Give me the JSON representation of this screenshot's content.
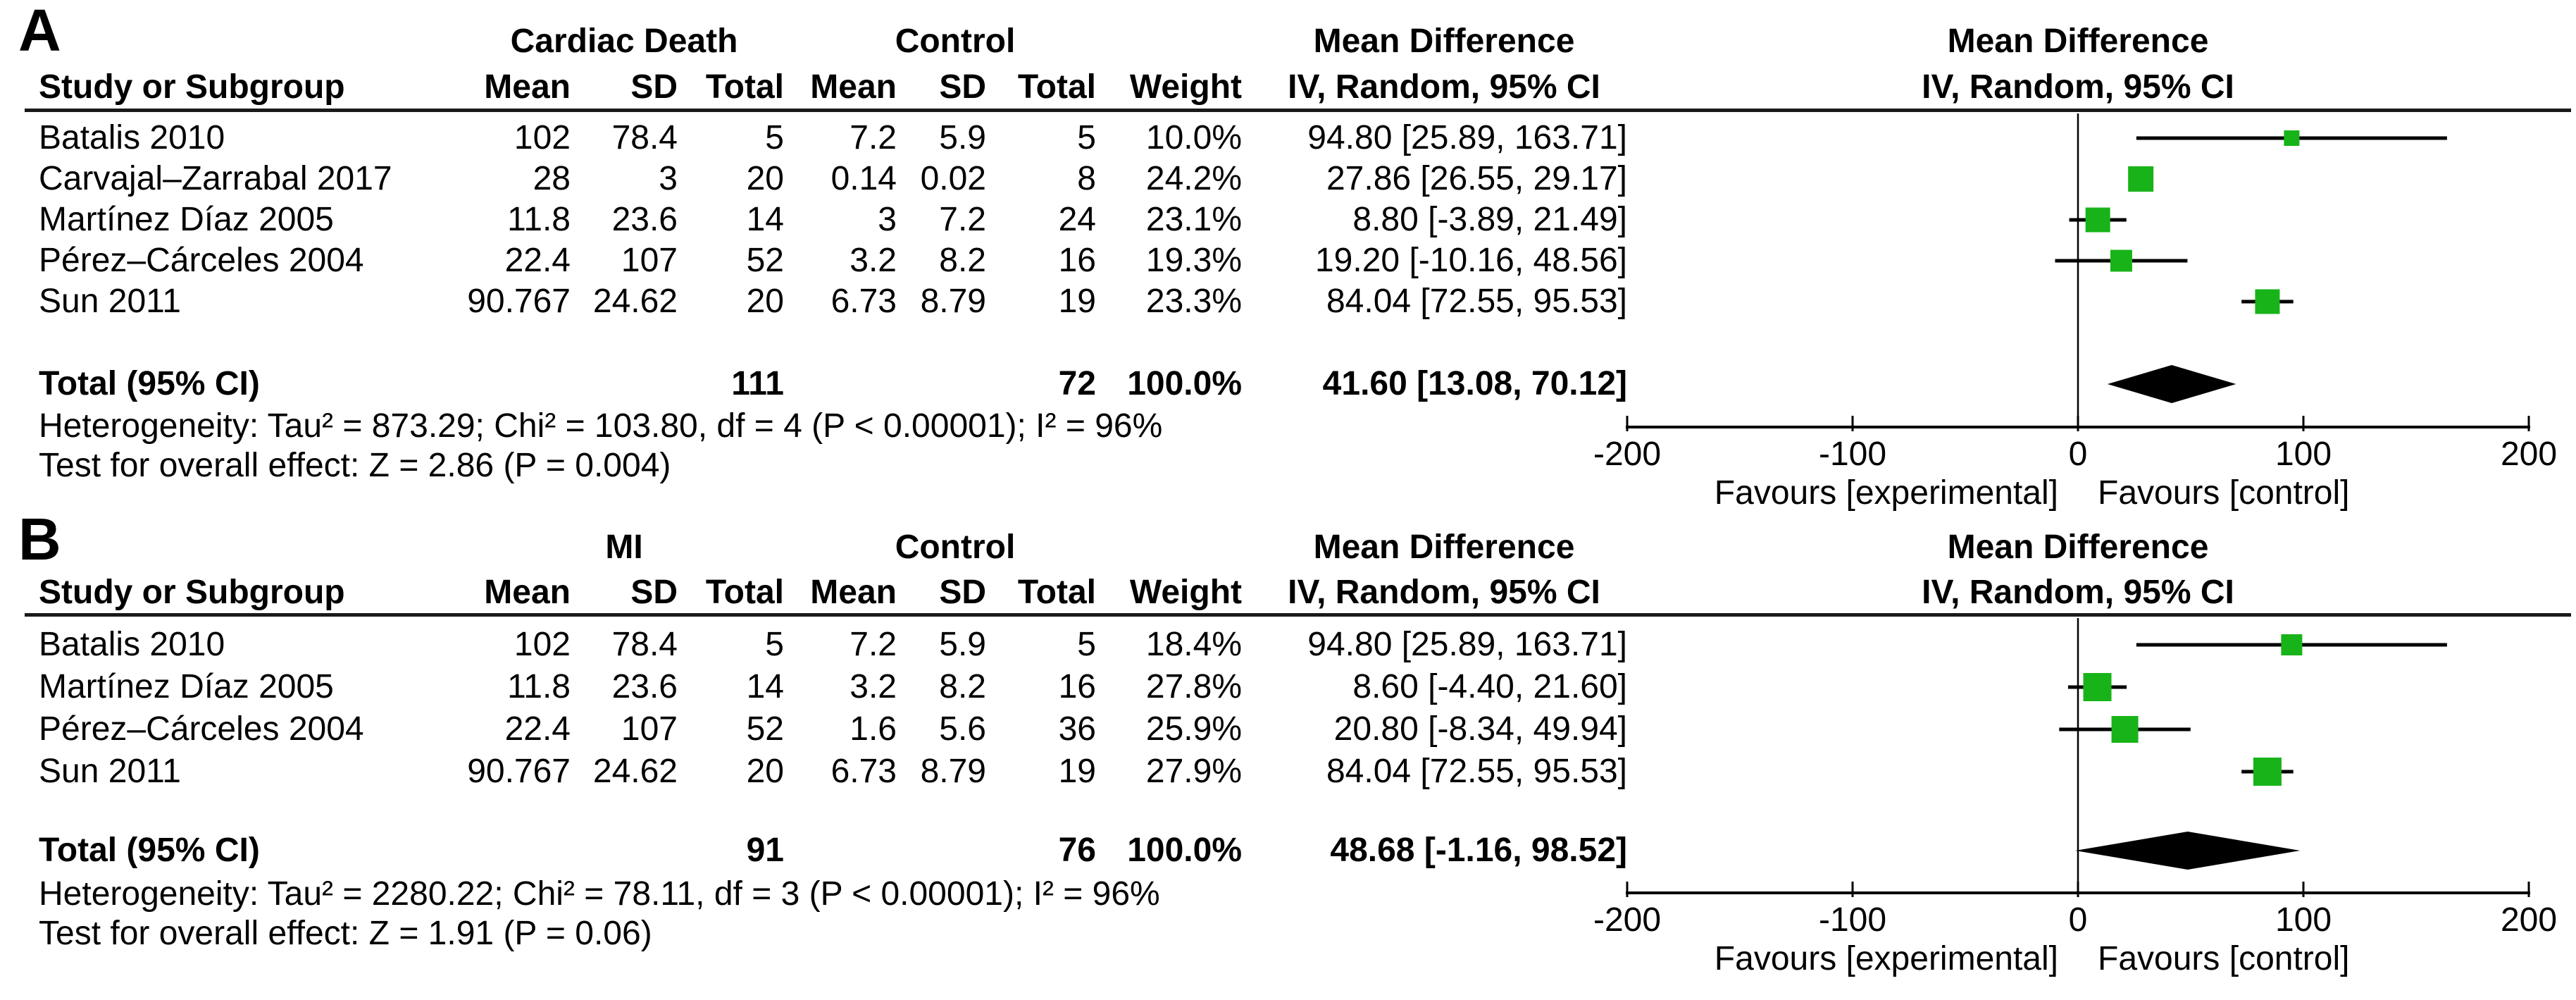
{
  "chart_data": [
    {
      "type": "forest",
      "panel_label": "A",
      "group1": "Cardiac Death",
      "group2": "Control",
      "effect_header": "Mean Difference",
      "effect_subheader": "IV, Random, 95% CI",
      "plot_header": "Mean Difference",
      "plot_subheader": "IV, Random, 95% CI",
      "col_headers": {
        "study": "Study or Subgroup",
        "mean": "Mean",
        "sd": "SD",
        "total": "Total",
        "weight": "Weight"
      },
      "studies": [
        {
          "name": "Batalis 2010",
          "mean_e": "102",
          "sd_e": "78.4",
          "n_e": "5",
          "mean_c": "7.2",
          "sd_c": "5.9",
          "n_c": "5",
          "weight": "10.0%",
          "ci_label": "94.80 [25.89, 163.71]",
          "est": 94.8,
          "lo": 25.89,
          "hi": 163.71,
          "weight_pct": 10.0
        },
        {
          "name": "Carvajal–Zarrabal 2017",
          "mean_e": "28",
          "sd_e": "3",
          "n_e": "20",
          "mean_c": "0.14",
          "sd_c": "0.02",
          "n_c": "8",
          "weight": "24.2%",
          "ci_label": "27.86 [26.55, 29.17]",
          "est": 27.86,
          "lo": 26.55,
          "hi": 29.17,
          "weight_pct": 24.2
        },
        {
          "name": "Martínez Díaz 2005",
          "mean_e": "11.8",
          "sd_e": "23.6",
          "n_e": "14",
          "mean_c": "3",
          "sd_c": "7.2",
          "n_c": "24",
          "weight": "23.1%",
          "ci_label": "8.80 [-3.89, 21.49]",
          "est": 8.8,
          "lo": -3.89,
          "hi": 21.49,
          "weight_pct": 23.1
        },
        {
          "name": "Pérez–Cárceles 2004",
          "mean_e": "22.4",
          "sd_e": "107",
          "n_e": "52",
          "mean_c": "3.2",
          "sd_c": "8.2",
          "n_c": "16",
          "weight": "19.3%",
          "ci_label": "19.20 [-10.16, 48.56]",
          "est": 19.2,
          "lo": -10.16,
          "hi": 48.56,
          "weight_pct": 19.3
        },
        {
          "name": "Sun 2011",
          "mean_e": "90.767",
          "sd_e": "24.62",
          "n_e": "20",
          "mean_c": "6.73",
          "sd_c": "8.79",
          "n_c": "19",
          "weight": "23.3%",
          "ci_label": "84.04 [72.55, 95.53]",
          "est": 84.04,
          "lo": 72.55,
          "hi": 95.53,
          "weight_pct": 23.3
        }
      ],
      "total": {
        "label": "Total (95% CI)",
        "n_e": "111",
        "n_c": "72",
        "weight": "100.0%",
        "ci_label": "41.60 [13.08, 70.12]",
        "est": 41.6,
        "lo": 13.08,
        "hi": 70.12
      },
      "heterogeneity": "Heterogeneity: Tau² = 873.29; Chi² = 103.80, df = 4 (P < 0.00001); I² = 96%",
      "overall_effect": "Test for overall effect: Z = 2.86 (P = 0.004)",
      "axis": {
        "min": -200,
        "max": 200,
        "tick_values": [
          -200,
          -100,
          0,
          100,
          200
        ],
        "tick_labels": [
          "-200",
          "-100",
          "0",
          "100",
          "200"
        ],
        "favours_left": "Favours [experimental]",
        "favours_right": "Favours [control]"
      }
    },
    {
      "type": "forest",
      "panel_label": "B",
      "group1": "MI",
      "group2": "Control",
      "effect_header": "Mean Difference",
      "effect_subheader": "IV, Random, 95% CI",
      "plot_header": "Mean Difference",
      "plot_subheader": "IV, Random, 95% CI",
      "col_headers": {
        "study": "Study or Subgroup",
        "mean": "Mean",
        "sd": "SD",
        "total": "Total",
        "weight": "Weight"
      },
      "studies": [
        {
          "name": "Batalis 2010",
          "mean_e": "102",
          "sd_e": "78.4",
          "n_e": "5",
          "mean_c": "7.2",
          "sd_c": "5.9",
          "n_c": "5",
          "weight": "18.4%",
          "ci_label": "94.80 [25.89, 163.71]",
          "est": 94.8,
          "lo": 25.89,
          "hi": 163.71,
          "weight_pct": 18.4
        },
        {
          "name": "Martínez Díaz 2005",
          "mean_e": "11.8",
          "sd_e": "23.6",
          "n_e": "14",
          "mean_c": "3.2",
          "sd_c": "8.2",
          "n_c": "16",
          "weight": "27.8%",
          "ci_label": "8.60 [-4.40, 21.60]",
          "est": 8.6,
          "lo": -4.4,
          "hi": 21.6,
          "weight_pct": 27.8
        },
        {
          "name": "Pérez–Cárceles 2004",
          "mean_e": "22.4",
          "sd_e": "107",
          "n_e": "52",
          "mean_c": "1.6",
          "sd_c": "5.6",
          "n_c": "36",
          "weight": "25.9%",
          "ci_label": "20.80 [-8.34, 49.94]",
          "est": 20.8,
          "lo": -8.34,
          "hi": 49.94,
          "weight_pct": 25.9
        },
        {
          "name": "Sun 2011",
          "mean_e": "90.767",
          "sd_e": "24.62",
          "n_e": "20",
          "mean_c": "6.73",
          "sd_c": "8.79",
          "n_c": "19",
          "weight": "27.9%",
          "ci_label": "84.04 [72.55, 95.53]",
          "est": 84.04,
          "lo": 72.55,
          "hi": 95.53,
          "weight_pct": 27.9
        }
      ],
      "total": {
        "label": "Total (95% CI)",
        "n_e": "91",
        "n_c": "76",
        "weight": "100.0%",
        "ci_label": "48.68 [-1.16, 98.52]",
        "est": 48.68,
        "lo": -1.16,
        "hi": 98.52
      },
      "heterogeneity": "Heterogeneity: Tau² = 2280.22; Chi² = 78.11, df = 3 (P < 0.00001); I² = 96%",
      "overall_effect": "Test for overall effect: Z = 1.91 (P = 0.06)",
      "axis": {
        "min": -200,
        "max": 200,
        "tick_values": [
          -200,
          -100,
          0,
          100,
          200
        ],
        "tick_labels": [
          "-200",
          "-100",
          "0",
          "100",
          "200"
        ],
        "favours_left": "Favours [experimental]",
        "favours_right": "Favours [control]"
      }
    }
  ],
  "colors": {
    "marker_green": "#18b318",
    "line_black": "#000000"
  }
}
